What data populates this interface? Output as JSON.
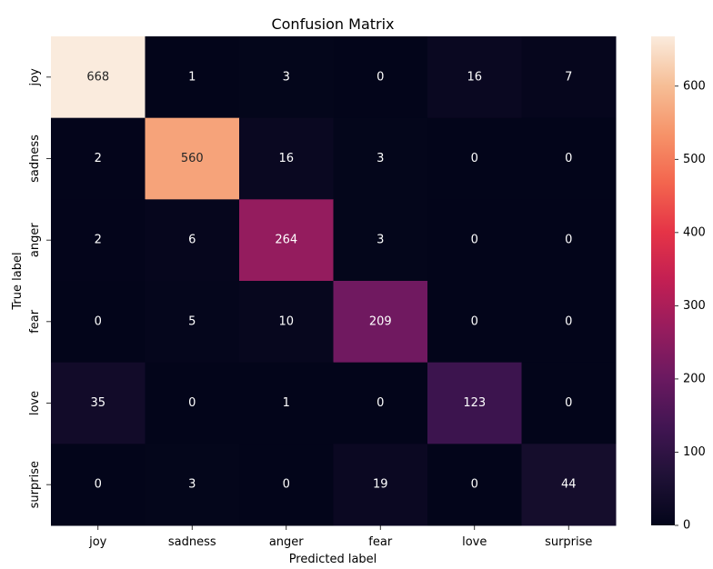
{
  "chart_data": {
    "type": "heatmap",
    "title": "Confusion Matrix",
    "xlabel": "Predicted label",
    "ylabel": "True label",
    "x_categories": [
      "joy",
      "sadness",
      "anger",
      "fear",
      "love",
      "surprise"
    ],
    "y_categories": [
      "joy",
      "sadness",
      "anger",
      "fear",
      "love",
      "surprise"
    ],
    "values": [
      [
        668,
        1,
        3,
        0,
        16,
        7
      ],
      [
        2,
        560,
        16,
        3,
        0,
        0
      ],
      [
        2,
        6,
        264,
        3,
        0,
        0
      ],
      [
        0,
        5,
        10,
        209,
        0,
        0
      ],
      [
        35,
        0,
        1,
        0,
        123,
        0
      ],
      [
        0,
        3,
        0,
        19,
        0,
        44
      ]
    ],
    "colormap": "rocket",
    "colorbar": {
      "min": 0,
      "max": 668,
      "ticks": [
        0,
        100,
        200,
        300,
        400,
        500,
        600
      ]
    },
    "annotation_colors": {
      "on_dark": "#ffffff",
      "on_light": "#262626"
    }
  }
}
